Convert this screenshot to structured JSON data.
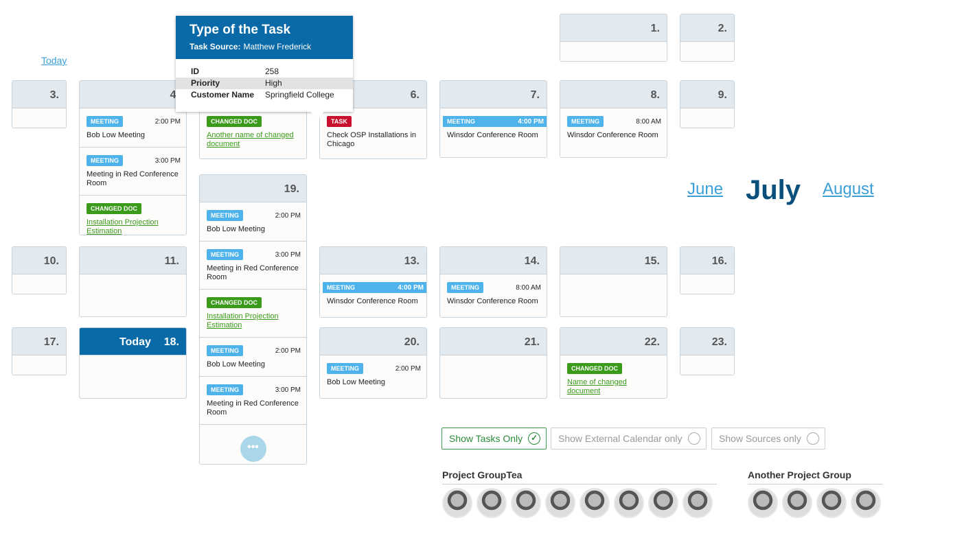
{
  "today_link": "Today",
  "tooltip": {
    "title": "Type of the Task",
    "source_label": "Task Source:",
    "source_value": "Matthew Frederick",
    "rows": [
      [
        "ID",
        "258"
      ],
      [
        "Priority",
        "High"
      ],
      [
        "Customer Name",
        "Springfield College"
      ]
    ]
  },
  "months": {
    "prev": "June",
    "current": "July",
    "next": "August"
  },
  "days": [
    {
      "label": "1.",
      "events": []
    },
    {
      "label": "2.",
      "events": []
    },
    {
      "label": "3.",
      "events": []
    },
    {
      "label": "4.",
      "events": [
        {
          "tag": "MEETING",
          "color": "#4db3ea",
          "time": "2:00 PM",
          "text": "Bob Low Meeting"
        },
        {
          "tag": "MEETING",
          "color": "#4db3ea",
          "time": "3:00 PM",
          "text": "Meeting in Red Conference Room"
        },
        {
          "tag": "CHANGED DOC",
          "color": "#3a9a1a",
          "text": "Installation Projection Estimation",
          "link": true
        }
      ]
    },
    {
      "events": [
        {
          "tag": "CHANGED DOC",
          "color": "#3a9a1a",
          "text": "Another name of changed document",
          "link": true
        }
      ]
    },
    {
      "label": "6.",
      "events": [
        {
          "tag": "TASK",
          "color": "#c8102e",
          "text": "Check OSP Installations in Chicago"
        }
      ]
    },
    {
      "label": "7.",
      "events": [
        {
          "tag": "MEETING",
          "color": "#4db3ea",
          "time": "4:00 PM",
          "text": "Winsdor Conference Room",
          "wide": true
        }
      ]
    },
    {
      "label": "8.",
      "events": [
        {
          "tag": "MEETING",
          "color": "#4db3ea",
          "time": "8:00 AM",
          "text": "Winsdor Conference Room"
        }
      ]
    },
    {
      "label": "9.",
      "events": []
    },
    {
      "label": "19.",
      "events": [
        {
          "tag": "MEETING",
          "color": "#4db3ea",
          "time": "2:00 PM",
          "text": "Bob Low Meeting"
        },
        {
          "tag": "MEETING",
          "color": "#4db3ea",
          "time": "3:00 PM",
          "text": "Meeting in Red Conference Room"
        },
        {
          "tag": "CHANGED DOC",
          "color": "#3a9a1a",
          "text": "Installation Projection Estimation",
          "link": true
        },
        {
          "tag": "MEETING",
          "color": "#4db3ea",
          "time": "2:00 PM",
          "text": "Bob Low Meeting"
        },
        {
          "tag": "MEETING",
          "color": "#4db3ea",
          "time": "3:00 PM",
          "text": "Meeting in Red Conference Room"
        }
      ]
    },
    {
      "label": "10.",
      "events": []
    },
    {
      "label": "11.",
      "events": []
    },
    {
      "label": "13.",
      "events": [
        {
          "tag": "MEETING",
          "color": "#4db3ea",
          "time": "4:00 PM",
          "text": "Winsdor Conference Room",
          "wide": true
        }
      ]
    },
    {
      "label": "14.",
      "events": [
        {
          "tag": "MEETING",
          "color": "#4db3ea",
          "time": "8:00 AM",
          "text": "Winsdor Conference Room"
        }
      ]
    },
    {
      "label": "15.",
      "events": []
    },
    {
      "label": "16.",
      "events": []
    },
    {
      "label": "17.",
      "events": []
    },
    {
      "label": "18.",
      "today": "Today",
      "events": []
    },
    {
      "label": "20.",
      "events": [
        {
          "tag": "MEETING",
          "color": "#4db3ea",
          "time": "2:00 PM",
          "text": "Bob Low Meeting"
        }
      ]
    },
    {
      "label": "21.",
      "events": []
    },
    {
      "label": "22.",
      "events": [
        {
          "tag": "CHANGED DOC",
          "color": "#3a9a1a",
          "text": "Name of changed document",
          "link": true
        }
      ]
    },
    {
      "label": "23.",
      "events": []
    }
  ],
  "filters": [
    {
      "label": "Show Tasks Only",
      "checked": true
    },
    {
      "label": "Show External Calendar only",
      "checked": false
    },
    {
      "label": "Show Sources only",
      "checked": false
    }
  ],
  "groups": [
    {
      "name": "Project GroupTea"
    },
    {
      "name": "Another Project Group"
    }
  ]
}
